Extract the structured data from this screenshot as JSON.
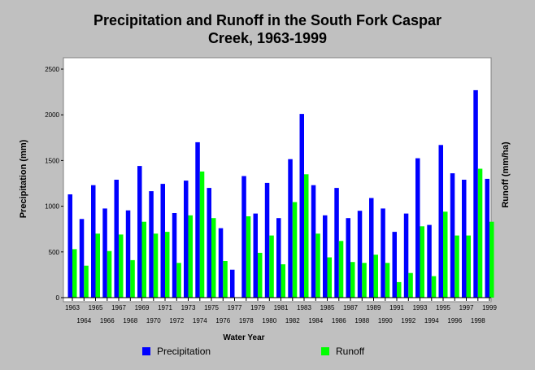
{
  "chart_data": {
    "type": "bar",
    "title_lines": [
      "Precipitation and Runoff in the South Fork Caspar",
      "Creek, 1963-1999"
    ],
    "xlabel": "Water Year",
    "ylabel": "Precipitation (mm)",
    "ylabel_right": "Runoff (mm/ha)",
    "ylim": [
      0,
      2500
    ],
    "yticks": [
      0,
      500,
      1000,
      1500,
      2000,
      2500
    ],
    "grid": false,
    "legend_position": "bottom",
    "categories": [
      "1963",
      "1964",
      "1965",
      "1966",
      "1967",
      "1968",
      "1969",
      "1970",
      "1971",
      "1972",
      "1973",
      "1974",
      "1975",
      "1976",
      "1977",
      "1978",
      "1979",
      "1980",
      "1981",
      "1982",
      "1983",
      "1984",
      "1985",
      "1986",
      "1987",
      "1988",
      "1989",
      "1990",
      "1991",
      "1992",
      "1993",
      "1994",
      "1995",
      "1996",
      "1997",
      "1998",
      "1999"
    ],
    "series": [
      {
        "name": "Precipitation",
        "color": "#0000ff",
        "values": [
          1130,
          860,
          1230,
          975,
          1290,
          955,
          1440,
          1165,
          1245,
          925,
          1280,
          1700,
          1200,
          760,
          305,
          1330,
          920,
          1255,
          870,
          1515,
          2010,
          1230,
          900,
          1200,
          870,
          950,
          1090,
          975,
          720,
          920,
          1525,
          795,
          1670,
          1360,
          1290,
          2270,
          1300
        ]
      },
      {
        "name": "Runoff",
        "color": "#00ff00",
        "values": [
          530,
          350,
          700,
          510,
          690,
          410,
          830,
          700,
          720,
          380,
          900,
          1380,
          870,
          400,
          0,
          890,
          490,
          680,
          365,
          1045,
          1350,
          700,
          440,
          620,
          390,
          380,
          470,
          380,
          170,
          270,
          780,
          235,
          940,
          680,
          680,
          1410,
          830
        ]
      }
    ]
  }
}
